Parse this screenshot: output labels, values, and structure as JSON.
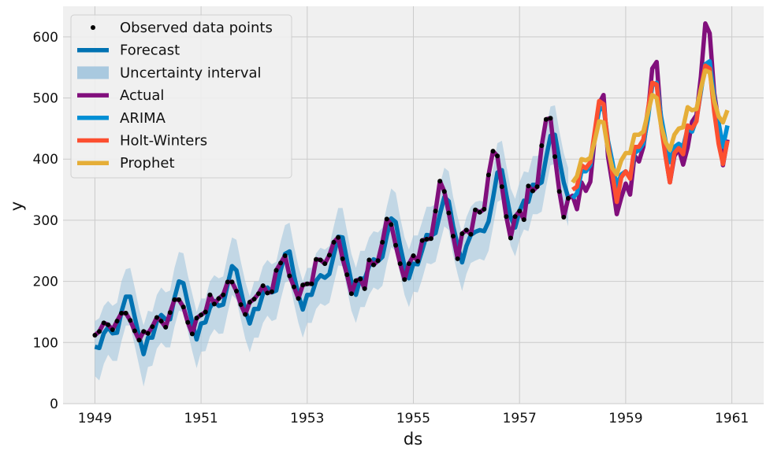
{
  "chart_data": {
    "type": "line",
    "title": "",
    "xlabel": "ds",
    "ylabel": "y",
    "xlim": [
      1948.4,
      1961.6
    ],
    "ylim": [
      0,
      650
    ],
    "grid": true,
    "background": "#f0f0f0",
    "legend_position": "top-left",
    "x_ticks": [
      1949,
      1951,
      1953,
      1955,
      1957,
      1959,
      1961
    ],
    "y_ticks": [
      0,
      100,
      200,
      300,
      400,
      500,
      600
    ],
    "x_tick_labels": [
      "1949",
      "1951",
      "1953",
      "1955",
      "1957",
      "1959",
      "1961"
    ],
    "y_tick_labels": [
      "0",
      "100",
      "200",
      "300",
      "400",
      "500",
      "600"
    ],
    "legend": [
      {
        "label": "Observed data points",
        "kind": "dot",
        "color": "#000000"
      },
      {
        "label": "Forecast",
        "kind": "line",
        "color": "#0072B2"
      },
      {
        "label": "Uncertainty interval",
        "kind": "band",
        "color": "#a9c9df"
      },
      {
        "label": "Actual",
        "kind": "line",
        "color": "#810f7c"
      },
      {
        "label": "ARIMA",
        "kind": "line",
        "color": "#008fd5"
      },
      {
        "label": "Holt-Winters",
        "kind": "line",
        "color": "#fc4f30"
      },
      {
        "label": "Prophet",
        "kind": "line",
        "color": "#e5ae38"
      }
    ],
    "series": [
      {
        "name": "Actual",
        "color": "#810f7c",
        "x": [
          1949.0,
          1949.083,
          1949.167,
          1949.25,
          1949.333,
          1949.417,
          1949.5,
          1949.583,
          1949.667,
          1949.75,
          1949.833,
          1949.917,
          1950.0,
          1950.083,
          1950.167,
          1950.25,
          1950.333,
          1950.417,
          1950.5,
          1950.583,
          1950.667,
          1950.75,
          1950.833,
          1950.917,
          1951.0,
          1951.083,
          1951.167,
          1951.25,
          1951.333,
          1951.417,
          1951.5,
          1951.583,
          1951.667,
          1951.75,
          1951.833,
          1951.917,
          1952.0,
          1952.083,
          1952.167,
          1952.25,
          1952.333,
          1952.417,
          1952.5,
          1952.583,
          1952.667,
          1952.75,
          1952.833,
          1952.917,
          1953.0,
          1953.083,
          1953.167,
          1953.25,
          1953.333,
          1953.417,
          1953.5,
          1953.583,
          1953.667,
          1953.75,
          1953.833,
          1953.917,
          1954.0,
          1954.083,
          1954.167,
          1954.25,
          1954.333,
          1954.417,
          1954.5,
          1954.583,
          1954.667,
          1954.75,
          1954.833,
          1954.917,
          1955.0,
          1955.083,
          1955.167,
          1955.25,
          1955.333,
          1955.417,
          1955.5,
          1955.583,
          1955.667,
          1955.75,
          1955.833,
          1955.917,
          1956.0,
          1956.083,
          1956.167,
          1956.25,
          1956.333,
          1956.417,
          1956.5,
          1956.583,
          1956.667,
          1956.75,
          1956.833,
          1956.917,
          1957.0,
          1957.083,
          1957.167,
          1957.25,
          1957.333,
          1957.417,
          1957.5,
          1957.583,
          1957.667,
          1957.75,
          1957.833,
          1957.917,
          1958.0,
          1958.083,
          1958.167,
          1958.25,
          1958.333,
          1958.417,
          1958.5,
          1958.583,
          1958.667,
          1958.75,
          1958.833,
          1958.917,
          1959.0,
          1959.083,
          1959.167,
          1959.25,
          1959.333,
          1959.417,
          1959.5,
          1959.583,
          1959.667,
          1959.75,
          1959.833,
          1959.917,
          1960.0,
          1960.083,
          1960.167,
          1960.25,
          1960.333,
          1960.417,
          1960.5,
          1960.583,
          1960.667,
          1960.75,
          1960.833,
          1960.917
        ],
        "y": [
          112,
          118,
          132,
          129,
          121,
          135,
          148,
          148,
          136,
          119,
          104,
          118,
          115,
          126,
          141,
          135,
          125,
          149,
          170,
          170,
          158,
          133,
          114,
          140,
          145,
          150,
          178,
          163,
          172,
          178,
          199,
          199,
          184,
          162,
          146,
          166,
          171,
          180,
          193,
          181,
          183,
          218,
          230,
          242,
          209,
          191,
          172,
          194,
          196,
          196,
          236,
          235,
          229,
          243,
          264,
          272,
          237,
          211,
          180,
          201,
          204,
          188,
          235,
          227,
          234,
          264,
          302,
          293,
          259,
          229,
          203,
          229,
          242,
          233,
          267,
          269,
          270,
          315,
          364,
          347,
          312,
          274,
          237,
          278,
          284,
          277,
          317,
          313,
          318,
          374,
          413,
          405,
          355,
          306,
          271,
          306,
          315,
          301,
          356,
          348,
          355,
          422,
          465,
          467,
          404,
          347,
          305,
          336,
          340,
          318,
          362,
          348,
          363,
          435,
          491,
          505,
          404,
          359,
          310,
          337,
          360,
          342,
          406,
          396,
          420,
          472,
          548,
          559,
          463,
          407,
          362,
          405,
          417,
          391,
          419,
          461,
          472,
          535,
          622,
          606,
          508,
          461,
          390,
          432
        ]
      },
      {
        "name": "Forecast",
        "color": "#0072B2",
        "x": [
          1949.0,
          1949.083,
          1949.167,
          1949.25,
          1949.333,
          1949.417,
          1949.5,
          1949.583,
          1949.667,
          1949.75,
          1949.833,
          1949.917,
          1950.0,
          1950.083,
          1950.167,
          1950.25,
          1950.333,
          1950.417,
          1950.5,
          1950.583,
          1950.667,
          1950.75,
          1950.833,
          1950.917,
          1951.0,
          1951.083,
          1951.167,
          1951.25,
          1951.333,
          1951.417,
          1951.5,
          1951.583,
          1951.667,
          1951.75,
          1951.833,
          1951.917,
          1952.0,
          1952.083,
          1952.167,
          1952.25,
          1952.333,
          1952.417,
          1952.5,
          1952.583,
          1952.667,
          1952.75,
          1952.833,
          1952.917,
          1953.0,
          1953.083,
          1953.167,
          1953.25,
          1953.333,
          1953.417,
          1953.5,
          1953.583,
          1953.667,
          1953.75,
          1953.833,
          1953.917,
          1954.0,
          1954.083,
          1954.167,
          1954.25,
          1954.333,
          1954.417,
          1954.5,
          1954.583,
          1954.667,
          1954.75,
          1954.833,
          1954.917,
          1955.0,
          1955.083,
          1955.167,
          1955.25,
          1955.333,
          1955.417,
          1955.5,
          1955.583,
          1955.667,
          1955.75,
          1955.833,
          1955.917,
          1956.0,
          1956.083,
          1956.167,
          1956.25,
          1956.333,
          1956.417,
          1956.5,
          1956.583,
          1956.667,
          1956.75,
          1956.833,
          1956.917,
          1957.0,
          1957.083,
          1957.167,
          1957.25,
          1957.333,
          1957.417,
          1957.5,
          1957.583,
          1957.667,
          1957.75,
          1957.833,
          1957.917
        ],
        "y": [
          93,
          91,
          115,
          125,
          115,
          116,
          150,
          175,
          175,
          142,
          110,
          81,
          108,
          108,
          135,
          145,
          138,
          138,
          173,
          200,
          197,
          164,
          133,
          105,
          131,
          133,
          157,
          168,
          160,
          162,
          195,
          225,
          218,
          185,
          153,
          131,
          155,
          155,
          180,
          190,
          182,
          185,
          218,
          245,
          249,
          210,
          178,
          154,
          178,
          178,
          201,
          210,
          206,
          212,
          243,
          273,
          272,
          234,
          199,
          178,
          205,
          204,
          225,
          236,
          233,
          240,
          275,
          303,
          297,
          258,
          225,
          205,
          229,
          228,
          251,
          276,
          275,
          279,
          310,
          338,
          331,
          290,
          259,
          231,
          258,
          276,
          281,
          284,
          282,
          298,
          336,
          378,
          382,
          342,
          305,
          288,
          315,
          332,
          330,
          358,
          358,
          362,
          402,
          438,
          440,
          399,
          362,
          337
        ]
      },
      {
        "name": "ARIMA",
        "color": "#008fd5",
        "x": [
          1958.0,
          1958.083,
          1958.167,
          1958.25,
          1958.333,
          1958.417,
          1958.5,
          1958.583,
          1958.667,
          1958.75,
          1958.833,
          1958.917,
          1959.0,
          1959.083,
          1959.167,
          1959.25,
          1959.333,
          1959.417,
          1959.5,
          1959.583,
          1959.667,
          1959.75,
          1959.833,
          1959.917,
          1960.0,
          1960.083,
          1960.167,
          1960.25,
          1960.333,
          1960.417,
          1960.5,
          1960.583,
          1960.667,
          1960.75,
          1960.833,
          1960.917
        ],
        "y": [
          336,
          344,
          380,
          380,
          390,
          440,
          480,
          485,
          430,
          395,
          355,
          375,
          380,
          370,
          410,
          415,
          425,
          465,
          520,
          525,
          470,
          430,
          395,
          420,
          425,
          420,
          450,
          445,
          465,
          510,
          555,
          560,
          500,
          460,
          420,
          455
        ]
      },
      {
        "name": "Holt-Winters",
        "color": "#fc4f30",
        "x": [
          1958.0,
          1958.083,
          1958.167,
          1958.25,
          1958.333,
          1958.417,
          1958.5,
          1958.583,
          1958.667,
          1958.75,
          1958.833,
          1958.917,
          1959.0,
          1959.083,
          1959.167,
          1959.25,
          1959.333,
          1959.417,
          1959.5,
          1959.583,
          1959.667,
          1959.75,
          1959.833,
          1959.917,
          1960.0,
          1960.083,
          1960.167,
          1960.25,
          1960.333,
          1960.417,
          1960.5,
          1960.583,
          1960.667,
          1960.75,
          1960.833,
          1960.917
        ],
        "y": [
          350,
          355,
          390,
          385,
          395,
          445,
          495,
          490,
          425,
          375,
          330,
          370,
          380,
          368,
          420,
          420,
          432,
          480,
          525,
          522,
          455,
          405,
          362,
          410,
          418,
          408,
          455,
          450,
          462,
          515,
          553,
          548,
          478,
          425,
          392,
          430
        ]
      },
      {
        "name": "Prophet",
        "color": "#e5ae38",
        "x": [
          1958.0,
          1958.083,
          1958.167,
          1958.25,
          1958.333,
          1958.417,
          1958.5,
          1958.583,
          1958.667,
          1958.75,
          1958.833,
          1958.917,
          1959.0,
          1959.083,
          1959.167,
          1959.25,
          1959.333,
          1959.417,
          1959.5,
          1959.583,
          1959.667,
          1959.75,
          1959.833,
          1959.917,
          1960.0,
          1960.083,
          1960.167,
          1960.25,
          1960.333,
          1960.417,
          1960.5,
          1960.583,
          1960.667,
          1960.75,
          1960.833,
          1960.917
        ],
        "y": [
          362,
          372,
          400,
          398,
          402,
          430,
          462,
          460,
          415,
          385,
          375,
          398,
          410,
          410,
          440,
          440,
          445,
          475,
          505,
          500,
          455,
          428,
          415,
          440,
          450,
          452,
          485,
          480,
          482,
          515,
          545,
          542,
          495,
          470,
          460,
          480
        ]
      }
    ],
    "uncertainty_interval": {
      "x": [
        1949.0,
        1949.083,
        1949.167,
        1949.25,
        1949.333,
        1949.417,
        1949.5,
        1949.583,
        1949.667,
        1949.75,
        1949.833,
        1949.917,
        1950.0,
        1950.083,
        1950.167,
        1950.25,
        1950.333,
        1950.417,
        1950.5,
        1950.583,
        1950.667,
        1950.75,
        1950.833,
        1950.917,
        1951.0,
        1951.083,
        1951.167,
        1951.25,
        1951.333,
        1951.417,
        1951.5,
        1951.583,
        1951.667,
        1951.75,
        1951.833,
        1951.917,
        1952.0,
        1952.083,
        1952.167,
        1952.25,
        1952.333,
        1952.417,
        1952.5,
        1952.583,
        1952.667,
        1952.75,
        1952.833,
        1952.917,
        1953.0,
        1953.083,
        1953.167,
        1953.25,
        1953.333,
        1953.417,
        1953.5,
        1953.583,
        1953.667,
        1953.75,
        1953.833,
        1953.917,
        1954.0,
        1954.083,
        1954.167,
        1954.25,
        1954.333,
        1954.417,
        1954.5,
        1954.583,
        1954.667,
        1954.75,
        1954.833,
        1954.917,
        1955.0,
        1955.083,
        1955.167,
        1955.25,
        1955.333,
        1955.417,
        1955.5,
        1955.583,
        1955.667,
        1955.75,
        1955.833,
        1955.917,
        1956.0,
        1956.083,
        1956.167,
        1956.25,
        1956.333,
        1956.417,
        1956.5,
        1956.583,
        1956.667,
        1956.75,
        1956.833,
        1956.917,
        1957.0,
        1957.083,
        1957.167,
        1957.25,
        1957.333,
        1957.417,
        1957.5,
        1957.583,
        1957.667,
        1957.75,
        1957.833,
        1957.917
      ],
      "upper": [
        135,
        140,
        160,
        168,
        160,
        165,
        200,
        220,
        222,
        190,
        155,
        128,
        152,
        150,
        178,
        190,
        182,
        185,
        222,
        248,
        246,
        210,
        180,
        150,
        172,
        172,
        200,
        210,
        205,
        208,
        242,
        272,
        268,
        232,
        200,
        175,
        200,
        200,
        225,
        235,
        228,
        232,
        265,
        292,
        296,
        258,
        225,
        200,
        222,
        222,
        246,
        255,
        252,
        258,
        290,
        320,
        320,
        282,
        245,
        222,
        250,
        250,
        272,
        282,
        280,
        288,
        322,
        352,
        345,
        305,
        272,
        252,
        275,
        275,
        298,
        322,
        322,
        326,
        358,
        386,
        380,
        338,
        306,
        278,
        305,
        322,
        330,
        332,
        330,
        345,
        384,
        426,
        430,
        390,
        352,
        335,
        362,
        380,
        378,
        405,
        405,
        410,
        450,
        486,
        488,
        446,
        410,
        385
      ],
      "lower": [
        45,
        38,
        65,
        80,
        70,
        70,
        102,
        128,
        128,
        95,
        62,
        28,
        60,
        62,
        90,
        100,
        92,
        92,
        126,
        152,
        150,
        118,
        86,
        58,
        85,
        86,
        110,
        122,
        114,
        115,
        148,
        178,
        170,
        138,
        106,
        84,
        108,
        108,
        132,
        144,
        135,
        138,
        170,
        198,
        202,
        164,
        132,
        108,
        132,
        132,
        155,
        164,
        160,
        165,
        196,
        226,
        225,
        188,
        152,
        132,
        158,
        158,
        178,
        190,
        186,
        193,
        228,
        256,
        250,
        212,
        178,
        158,
        183,
        182,
        204,
        230,
        228,
        232,
        262,
        290,
        284,
        243,
        212,
        184,
        212,
        230,
        234,
        237,
        234,
        250,
        288,
        330,
        334,
        295,
        258,
        241,
        268,
        285,
        282,
        310,
        310,
        314,
        354,
        390,
        392,
        352,
        315,
        290
      ]
    }
  }
}
